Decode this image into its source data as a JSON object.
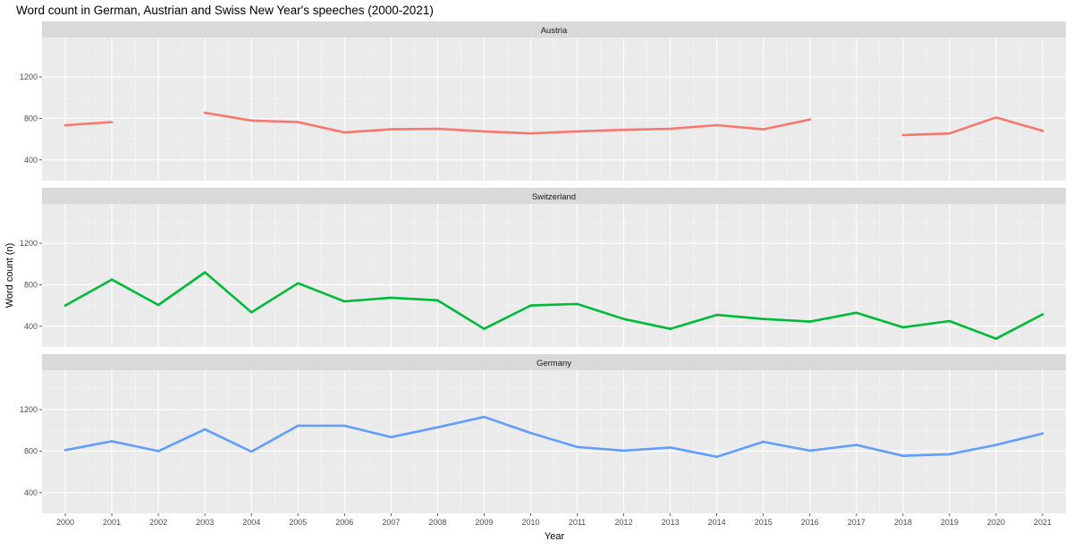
{
  "chart_data": {
    "type": "line",
    "title": "Word count in German, Austrian and Swiss New Year's speeches (2000-2021)",
    "xlabel": "Year",
    "ylabel": "Word count (n)",
    "x": [
      2000,
      2001,
      2002,
      2003,
      2004,
      2005,
      2006,
      2007,
      2008,
      2009,
      2010,
      2011,
      2012,
      2013,
      2014,
      2015,
      2016,
      2017,
      2018,
      2019,
      2020,
      2021
    ],
    "xlim": [
      1999.5,
      2021.5
    ],
    "ylim": [
      200,
      1580
    ],
    "yticks": [
      400,
      800,
      1200
    ],
    "grid": true,
    "facets": [
      {
        "label": "Austria",
        "color": "#F8766D",
        "values": [
          735,
          765,
          null,
          855,
          780,
          765,
          665,
          695,
          700,
          675,
          655,
          675,
          690,
          700,
          735,
          695,
          790,
          null,
          640,
          655,
          810,
          680
        ]
      },
      {
        "label": "Switzerland",
        "color": "#00BA38",
        "values": [
          600,
          850,
          605,
          920,
          535,
          815,
          640,
          675,
          650,
          375,
          600,
          615,
          470,
          375,
          510,
          470,
          445,
          530,
          390,
          450,
          280,
          515
        ]
      },
      {
        "label": "Germany",
        "color": "#619CFF",
        "values": [
          810,
          895,
          800,
          1010,
          795,
          1045,
          1045,
          935,
          1030,
          1130,
          975,
          840,
          805,
          835,
          745,
          890,
          805,
          860,
          755,
          770,
          860,
          970
        ]
      }
    ]
  }
}
